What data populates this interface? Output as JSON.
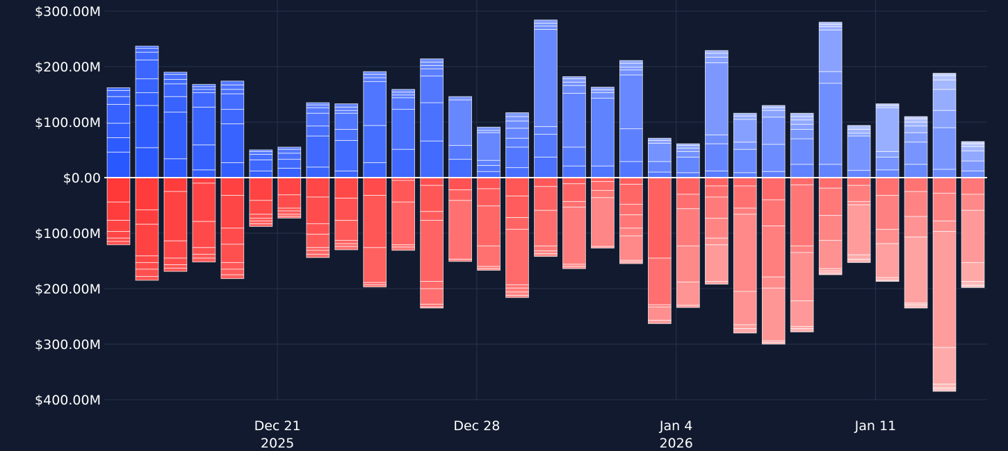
{
  "chart_data": {
    "type": "bar",
    "stacked": true,
    "background": "#111a2e",
    "grid": true,
    "x": [
      "2025-12-15",
      "2025-12-16",
      "2025-12-17",
      "2025-12-18",
      "2025-12-19",
      "2025-12-20",
      "2025-12-21",
      "2025-12-22",
      "2025-12-23",
      "2025-12-24",
      "2025-12-25",
      "2025-12-26",
      "2025-12-27",
      "2025-12-28",
      "2025-12-29",
      "2025-12-30",
      "2025-12-31",
      "2026-01-01",
      "2026-01-02",
      "2026-01-03",
      "2026-01-04",
      "2026-01-05",
      "2026-01-06",
      "2026-01-07",
      "2026-01-08",
      "2026-01-09",
      "2026-01-10",
      "2026-01-11",
      "2026-01-12",
      "2026-01-13",
      "2026-01-14"
    ],
    "x_ticks": [
      {
        "date": "2025-12-21",
        "line1": "Dec 21",
        "line2": "2025"
      },
      {
        "date": "2025-12-28",
        "line1": "Dec 28",
        "line2": ""
      },
      {
        "date": "2026-01-04",
        "line1": "Jan 4",
        "line2": "2026"
      },
      {
        "date": "2026-01-11",
        "line1": "Jan 11",
        "line2": ""
      }
    ],
    "ylim": [
      -400,
      300
    ],
    "y_ticks": [
      {
        "value": 300,
        "label": "$300.00M"
      },
      {
        "value": 200,
        "label": "$200.00M"
      },
      {
        "value": 100,
        "label": "$100.00M"
      },
      {
        "value": 0,
        "label": "$0.00"
      },
      {
        "value": -100,
        "label": "$100.00M"
      },
      {
        "value": -200,
        "label": "$200.00M"
      },
      {
        "value": -300,
        "label": "$300.00M"
      },
      {
        "value": -400,
        "label": "$400.00M"
      }
    ],
    "positive": {
      "color": "#1f4fff",
      "values": [
        162,
        237,
        190,
        168,
        174,
        50,
        55,
        135,
        133,
        191,
        159,
        214,
        146,
        91,
        117,
        284,
        182,
        163,
        211,
        71,
        61,
        229,
        116,
        130,
        116,
        280,
        94,
        133,
        110,
        188,
        65
      ],
      "segments": [
        [
          0,
          46,
          72,
          98,
          132,
          146,
          157,
          162
        ],
        [
          0,
          54,
          130,
          153,
          178,
          212,
          226,
          233,
          237
        ],
        [
          0,
          34,
          118,
          146,
          169,
          177,
          186,
          190
        ],
        [
          0,
          14,
          59,
          127,
          153,
          159,
          164,
          168
        ],
        [
          0,
          27,
          97,
          123,
          151,
          159,
          167,
          174
        ],
        [
          0,
          12,
          32,
          42,
          47,
          50
        ],
        [
          0,
          17,
          33,
          44,
          51,
          55
        ],
        [
          0,
          19,
          75,
          93,
          116,
          126,
          131,
          135
        ],
        [
          0,
          12,
          67,
          87,
          116,
          121,
          127,
          133
        ],
        [
          0,
          27,
          94,
          173,
          180,
          186,
          191
        ],
        [
          0,
          51,
          123,
          144,
          149,
          154,
          159
        ],
        [
          0,
          66,
          135,
          183,
          196,
          202,
          208,
          214
        ],
        [
          0,
          33,
          58,
          140,
          146
        ],
        [
          0,
          11,
          22,
          31,
          81,
          85,
          91
        ],
        [
          0,
          18,
          55,
          71,
          89,
          102,
          110,
          117
        ],
        [
          0,
          37,
          78,
          92,
          267,
          273,
          278,
          284
        ],
        [
          0,
          21,
          55,
          152,
          166,
          172,
          178,
          182
        ],
        [
          0,
          21,
          143,
          153,
          158,
          163
        ],
        [
          0,
          29,
          88,
          185,
          194,
          199,
          206,
          211
        ],
        [
          0,
          10,
          29,
          62,
          67,
          71
        ],
        [
          0,
          9,
          37,
          47,
          53,
          58,
          61
        ],
        [
          0,
          12,
          61,
          77,
          207,
          217,
          224,
          229
        ],
        [
          0,
          9,
          51,
          64,
          105,
          111,
          116
        ],
        [
          0,
          11,
          60,
          109,
          121,
          126,
          130
        ],
        [
          0,
          24,
          70,
          87,
          96,
          104,
          110,
          116
        ],
        [
          0,
          24,
          170,
          191,
          266,
          272,
          276,
          280
        ],
        [
          0,
          13,
          75,
          80,
          87,
          94
        ],
        [
          0,
          14,
          37,
          47,
          126,
          130,
          133
        ],
        [
          0,
          24,
          64,
          81,
          93,
          100,
          106,
          110
        ],
        [
          0,
          15,
          90,
          121,
          159,
          176,
          184,
          188
        ],
        [
          0,
          12,
          30,
          48,
          56,
          61,
          65
        ]
      ]
    },
    "negative": {
      "color": "#ff2e2e",
      "values": [
        121,
        185,
        169,
        152,
        182,
        88,
        73,
        144,
        130,
        197,
        131,
        235,
        151,
        167,
        216,
        142,
        164,
        127,
        155,
        263,
        234,
        192,
        280,
        300,
        278,
        175,
        153,
        187,
        235,
        385,
        198
      ],
      "segments": [
        [
          0,
          44,
          77,
          97,
          109,
          115,
          121
        ],
        [
          0,
          58,
          84,
          141,
          153,
          165,
          178,
          185
        ],
        [
          0,
          25,
          114,
          145,
          157,
          163,
          169
        ],
        [
          0,
          10,
          79,
          126,
          138,
          145,
          152
        ],
        [
          0,
          32,
          91,
          120,
          153,
          165,
          175,
          182
        ],
        [
          0,
          41,
          66,
          73,
          78,
          83,
          88
        ],
        [
          0,
          31,
          55,
          60,
          66,
          70,
          73
        ],
        [
          0,
          35,
          83,
          102,
          126,
          131,
          138,
          144
        ],
        [
          0,
          37,
          77,
          113,
          119,
          124,
          130
        ],
        [
          0,
          32,
          126,
          189,
          193,
          197
        ],
        [
          0,
          5,
          44,
          121,
          125,
          131
        ],
        [
          0,
          14,
          61,
          77,
          187,
          200,
          228,
          233,
          235
        ],
        [
          0,
          22,
          41,
          147,
          151
        ],
        [
          0,
          20,
          51,
          123,
          160,
          164,
          167
        ],
        [
          0,
          33,
          72,
          93,
          193,
          199,
          206,
          212,
          216
        ],
        [
          0,
          16,
          59,
          123,
          132,
          137,
          142
        ],
        [
          0,
          11,
          43,
          53,
          156,
          160,
          164
        ],
        [
          0,
          7,
          23,
          36,
          124,
          127
        ],
        [
          0,
          12,
          48,
          67,
          91,
          105,
          149,
          152,
          155
        ],
        [
          0,
          145,
          229,
          233,
          257,
          263
        ],
        [
          0,
          30,
          56,
          123,
          188,
          230,
          234
        ],
        [
          0,
          15,
          35,
          73,
          109,
          121,
          187,
          192
        ],
        [
          0,
          15,
          55,
          66,
          205,
          265,
          272,
          280
        ],
        [
          0,
          40,
          87,
          179,
          199,
          294,
          297,
          300
        ],
        [
          0,
          13,
          123,
          135,
          222,
          268,
          272,
          278
        ],
        [
          0,
          19,
          68,
          113,
          164,
          168,
          172,
          175
        ],
        [
          0,
          14,
          43,
          49,
          139,
          147,
          153
        ],
        [
          0,
          32,
          93,
          119,
          180,
          185,
          187
        ],
        [
          0,
          25,
          70,
          107,
          226,
          229,
          235
        ],
        [
          0,
          28,
          78,
          97,
          306,
          372,
          379,
          385
        ],
        [
          0,
          30,
          59,
          153,
          187,
          194,
          198
        ]
      ]
    }
  }
}
